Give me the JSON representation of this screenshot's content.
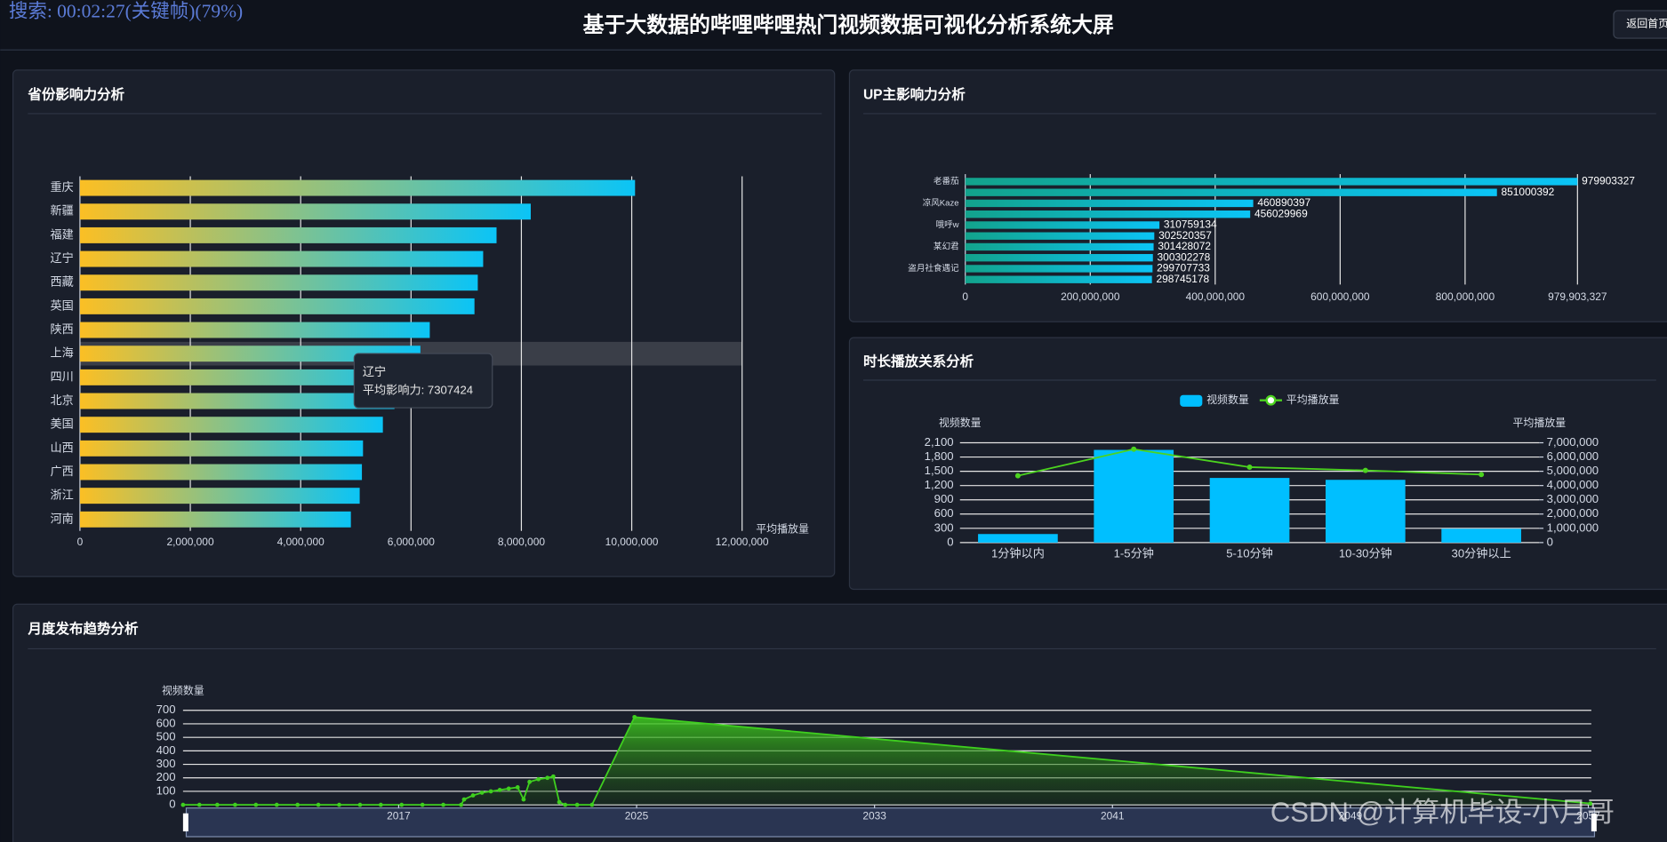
{
  "header": {
    "title": "基于大数据的哔哩哔哩热门视频数据可视化分析系统大屏",
    "back_button": "返回首页",
    "overlay": "搜索: 00:02:27(关键帧)(79%)"
  },
  "watermark": "CSDN @计算机毕设-小月哥",
  "tooltip": {
    "title": "辽宁",
    "text": "平均影响力: 7307424"
  },
  "chart_data": [
    {
      "type": "bar",
      "orientation": "horizontal",
      "title": "省份影响力分析",
      "x_axis_name": "平均播放量",
      "categories": [
        "重庆",
        "新疆",
        "福建",
        "辽宁",
        "西藏",
        "英国",
        "陕西",
        "上海",
        "四川",
        "北京",
        "美国",
        "山西",
        "广西",
        "浙江",
        "河南"
      ],
      "values": [
        10060000,
        8170000,
        7550000,
        7307424,
        7210000,
        7150000,
        6340000,
        6170000,
        5950000,
        5700000,
        5490000,
        5130000,
        5110000,
        5070000,
        4910000
      ],
      "colors": [
        "#fbbf24",
        "#0bc4f6"
      ],
      "xlim": [
        0,
        12000000
      ],
      "xticks": [
        0,
        {
          "value": 2000000,
          "label": "2,000,000"
        },
        {
          "value": 4000000,
          "label": "4,000,000"
        },
        {
          "value": 6000000,
          "label": "6,000,000"
        },
        {
          "value": 8000000,
          "label": "8,000,000"
        },
        {
          "value": 10000000,
          "label": "10,000,000"
        },
        {
          "value": 12000000,
          "label": "12,000,000"
        }
      ],
      "grid": true
    },
    {
      "type": "bar",
      "orientation": "horizontal",
      "title": "UP主影响力分析",
      "categories": [
        "老番茄",
        null,
        "凉风Kaze",
        null,
        "哦呼w",
        null,
        "某幻君",
        null,
        "盗月社食遇记",
        null
      ],
      "values": [
        979903327,
        851000392,
        460890397,
        456029969,
        310759134,
        302520357,
        301428072,
        300302278,
        299707733,
        298745178
      ],
      "colors": [
        "#12a38c",
        "#0bc4f6"
      ],
      "xlim": [
        0,
        979903327
      ],
      "xticks": [
        0,
        {
          "value": 200000000,
          "label": "200,000,000"
        },
        {
          "value": 400000000,
          "label": "400,000,000"
        },
        {
          "value": 600000000,
          "label": "600,000,000"
        },
        {
          "value": 800000000,
          "label": "800,000,000"
        },
        {
          "value": 979903327,
          "label": "979,903,327"
        }
      ],
      "grid": true
    },
    {
      "type": "bar-line",
      "title": "时长播放关系分析",
      "y_axis_name": "视频数量",
      "y2_axis_name": "平均播放量",
      "categories": [
        "1分钟以内",
        "1-5分钟",
        "5-10分钟",
        "10-30分钟",
        "30分钟以上"
      ],
      "series": [
        {
          "name": "视频数量",
          "type": "bar",
          "color": "#00bfff",
          "values": [
            180,
            1950,
            1360,
            1320,
            290
          ]
        },
        {
          "name": "平均播放量",
          "type": "line",
          "axis": "y2",
          "color": "#4cd41f",
          "values": [
            4690000,
            6550000,
            5290000,
            5060000,
            4770000
          ]
        }
      ],
      "ylim": [
        0,
        2100
      ],
      "yticks": [
        0,
        300,
        600,
        900,
        {
          "value": 1200,
          "label": "1,200"
        },
        {
          "value": 1500,
          "label": "1,500"
        },
        {
          "value": 1800,
          "label": "1,800"
        },
        {
          "value": 2100,
          "label": "2,100"
        }
      ],
      "y2lim": [
        0,
        7000000
      ],
      "y2ticks": [
        0,
        {
          "value": 1000000,
          "label": "1,000,000"
        },
        {
          "value": 2000000,
          "label": "2,000,000"
        },
        {
          "value": 3000000,
          "label": "3,000,000"
        },
        {
          "value": 4000000,
          "label": "4,000,000"
        },
        {
          "value": 5000000,
          "label": "5,000,000"
        },
        {
          "value": 6000000,
          "label": "6,000,000"
        },
        {
          "value": 7000000,
          "label": "7,000,000"
        }
      ],
      "grid": true,
      "legend": "top"
    },
    {
      "type": "area",
      "title": "月度发布趋势分析",
      "y_axis_name": "视频数量",
      "color": "#3fcf1f",
      "x": [
        2009.75,
        2010.3,
        2010.9,
        2011.5,
        2012.2,
        2012.9,
        2013.6,
        2014.3,
        2015.0,
        2015.7,
        2016.4,
        2017.1,
        2017.8,
        2018.5,
        2019.1,
        2019.2,
        2019.5,
        2019.8,
        2020.1,
        2020.4,
        2020.7,
        2021.0,
        2021.2,
        2021.4,
        2021.7,
        2022.0,
        2022.2,
        2022.4,
        2022.6,
        2023.0,
        2023.5,
        2024.93,
        2057.07
      ],
      "values": [
        0,
        0,
        0,
        0,
        0,
        0,
        0,
        0,
        0,
        0,
        0,
        0,
        0,
        0,
        0,
        40,
        70,
        90,
        100,
        110,
        120,
        130,
        40,
        170,
        190,
        200,
        210,
        20,
        0,
        0,
        0,
        650,
        10
      ],
      "xlim": [
        2009.75,
        2057.1
      ],
      "xticks": [
        2017,
        2025,
        2033,
        2041,
        2049,
        2057
      ],
      "ylim": [
        0,
        700
      ],
      "yticks": [
        0,
        100,
        200,
        300,
        400,
        500,
        600,
        700
      ],
      "grid": true
    }
  ]
}
